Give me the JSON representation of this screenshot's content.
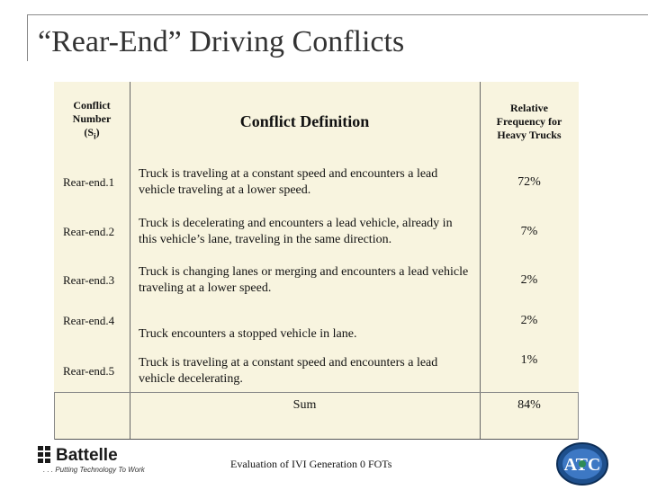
{
  "slide": {
    "title": "“Rear-End” Driving Conflicts",
    "footer": "Evaluation of IVI Generation 0 FOTs"
  },
  "table": {
    "headers": {
      "number": "Conflict Number (Si)",
      "number_line1": "Conflict",
      "number_line2": "Number",
      "number_line3": "(S",
      "number_sub": "i",
      "number_close": ")",
      "definition": "Conflict Definition",
      "frequency_line1": "Relative",
      "frequency_line2": "Frequency for",
      "frequency_line3": "Heavy Trucks"
    },
    "rows": [
      {
        "number": "Rear-end.1",
        "definition": "Truck is traveling at a constant speed and encounters a lead vehicle traveling at a lower speed.",
        "frequency": "72%"
      },
      {
        "number": "Rear-end.2",
        "definition": "Truck is decelerating and encounters a lead vehicle, already in this vehicle’s lane, traveling in the same direction.",
        "frequency": "7%"
      },
      {
        "number": "Rear-end.3",
        "definition": "Truck is changing lanes or merging and encounters a lead vehicle traveling at a lower speed.",
        "frequency": "2%"
      },
      {
        "number": "Rear-end.4",
        "definition": "Truck encounters a stopped vehicle in lane.",
        "frequency": "2%"
      },
      {
        "number": "Rear-end.5",
        "definition": "Truck is traveling at a constant speed and encounters a lead vehicle decelerating.",
        "frequency": "1%"
      }
    ],
    "sum_label": "Sum",
    "sum_value": "84%"
  },
  "logos": {
    "battelle_name": "Battelle",
    "battelle_tagline": ". . . Putting Technology To Work",
    "atc_letters": "ATC"
  }
}
